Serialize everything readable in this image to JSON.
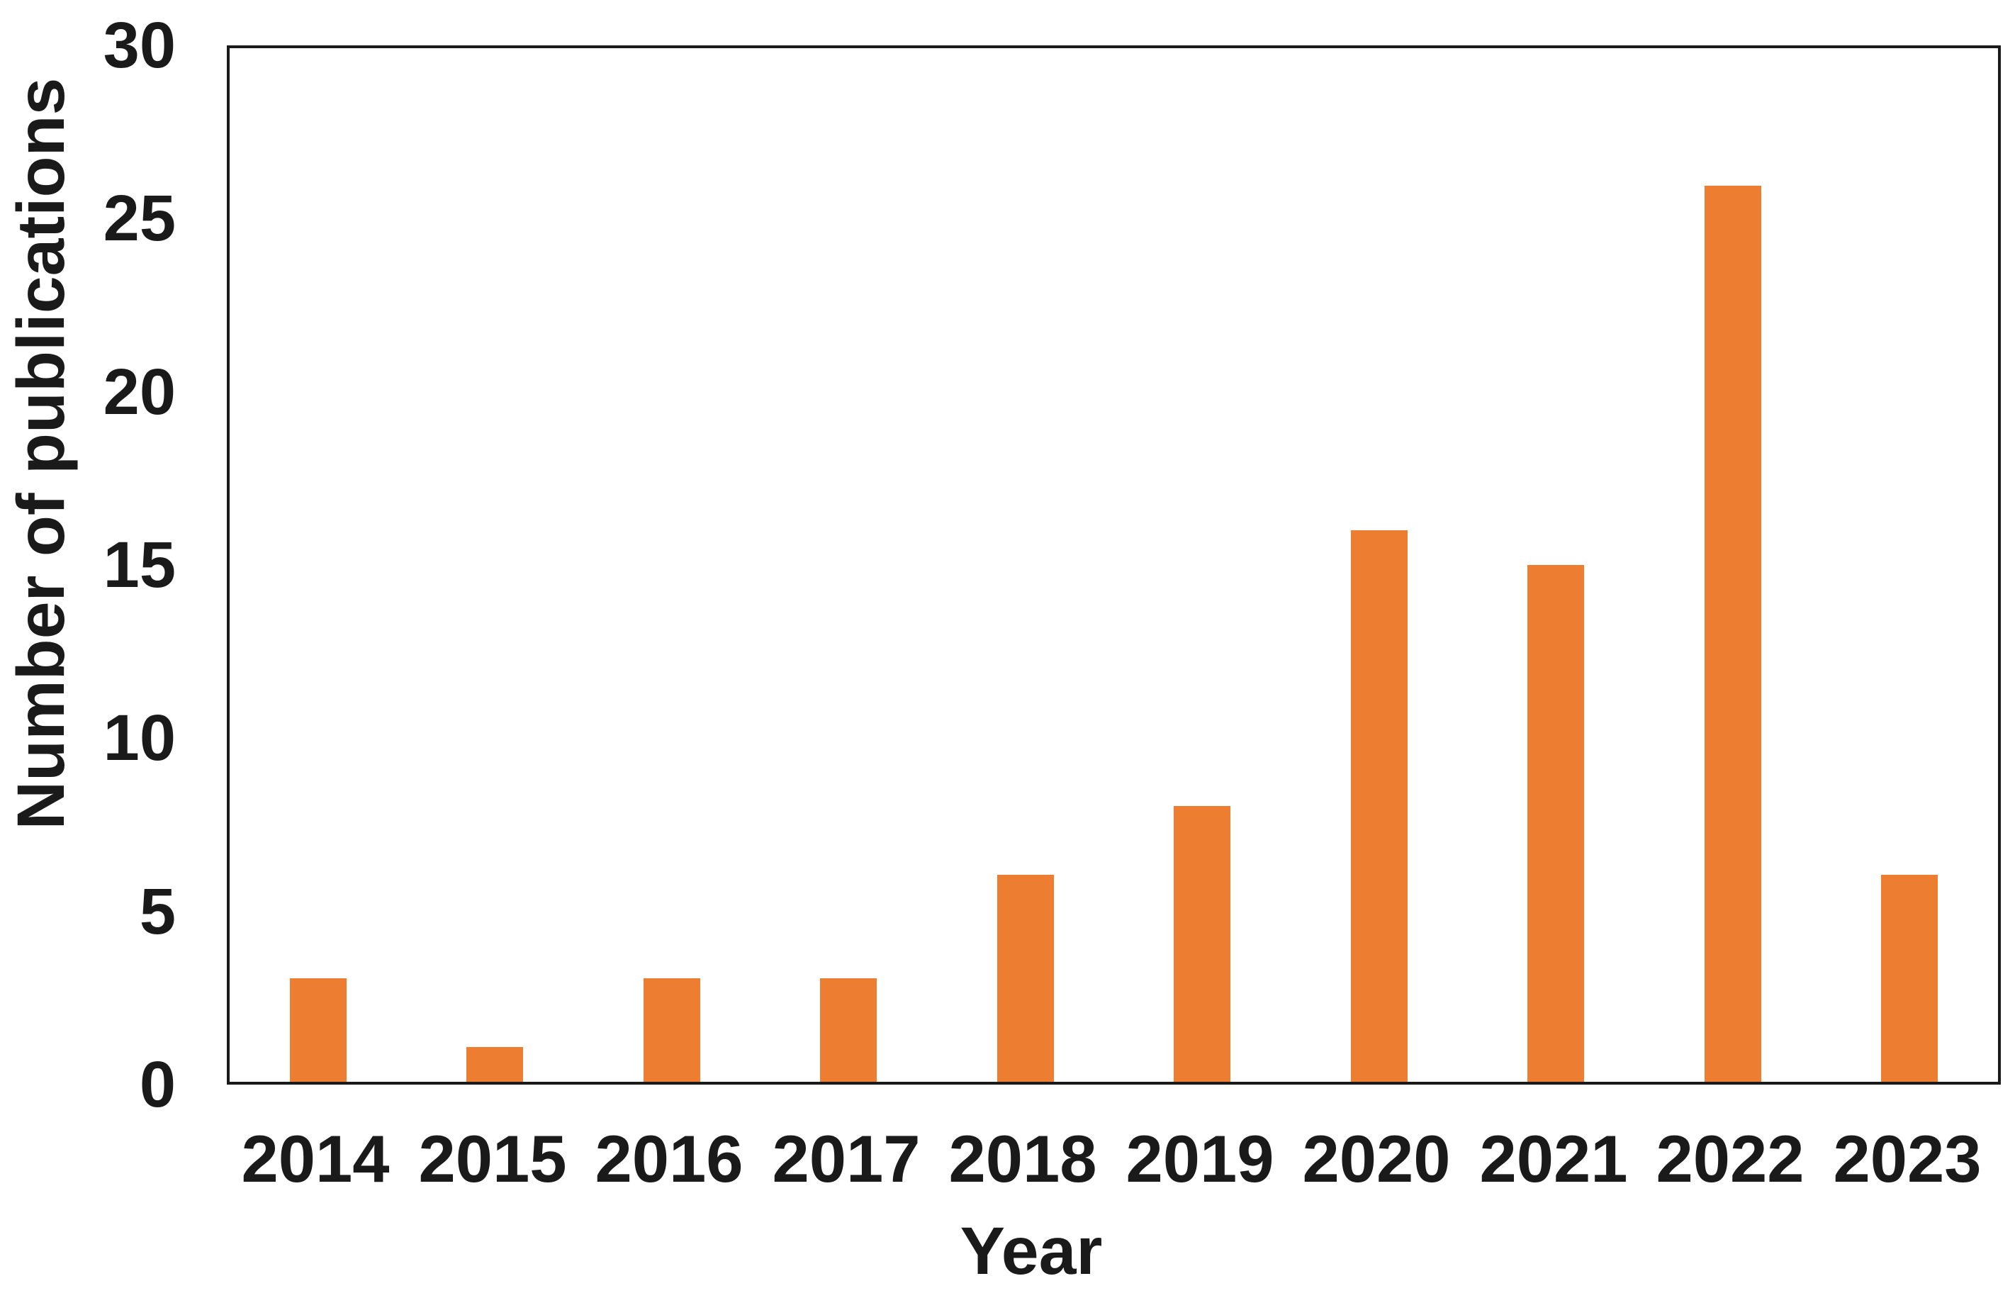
{
  "chart_data": {
    "type": "bar",
    "title": "",
    "xlabel": "Year",
    "ylabel": "Number of publications",
    "categories": [
      "2014",
      "2015",
      "2016",
      "2017",
      "2018",
      "2019",
      "2020",
      "2021",
      "2022",
      "2023"
    ],
    "values": [
      3,
      1,
      3,
      3,
      6,
      8,
      16,
      15,
      26,
      6
    ],
    "ylim": [
      0,
      30
    ],
    "yticks": [
      0,
      5,
      10,
      15,
      20,
      25,
      30
    ],
    "grid": false,
    "legend": "none",
    "bar_color": "#ED7D31",
    "axis_frame_color": "#1a1a1a",
    "text_color": "#1a1a1a",
    "background_color": "#ffffff"
  }
}
